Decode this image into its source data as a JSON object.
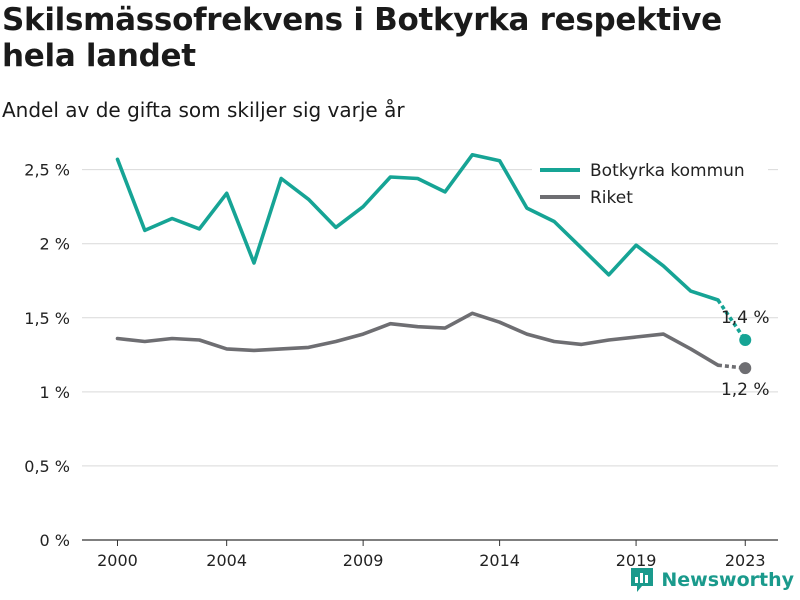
{
  "title": "Skilsmässofrekvens i Botkyrka respektive hela landet",
  "subtitle": "Andel av de gifta som skiljer sig varje år",
  "brand": "Newsworthy",
  "colors": {
    "botkyrka": "#16a495",
    "riket": "#6e6e72",
    "grid": "#d9d9d9",
    "axis": "#333333"
  },
  "chart_data": {
    "type": "line",
    "title": "Skilsmässofrekvens i Botkyrka respektive hela landet",
    "subtitle": "Andel av de gifta som skiljer sig varje år",
    "x": [
      2000,
      2001,
      2002,
      2003,
      2004,
      2005,
      2006,
      2007,
      2008,
      2009,
      2010,
      2011,
      2012,
      2013,
      2014,
      2015,
      2016,
      2017,
      2018,
      2019,
      2020,
      2021,
      2022,
      2023
    ],
    "xticks": [
      2000,
      2004,
      2009,
      2014,
      2019,
      2023
    ],
    "xlim": [
      1998.7,
      2024.2
    ],
    "ylim": [
      0,
      2.7
    ],
    "yticks": [
      0,
      0.5,
      1,
      1.5,
      2,
      2.5
    ],
    "ytick_labels": [
      "0 %",
      "0,5 %",
      "1 %",
      "1,5 %",
      "2 %",
      "2,5 %"
    ],
    "grid": true,
    "legend_position": "top-right",
    "series": [
      {
        "name": "Botkyrka kommun",
        "color": "#16a495",
        "values": [
          2.57,
          2.09,
          2.17,
          2.1,
          2.34,
          1.87,
          2.44,
          2.3,
          2.11,
          2.25,
          2.45,
          2.44,
          2.35,
          2.6,
          2.56,
          2.24,
          2.15,
          1.97,
          1.79,
          1.99,
          1.85,
          1.68,
          1.62,
          1.35
        ],
        "end_label": "1,4 %"
      },
      {
        "name": "Riket",
        "color": "#6e6e72",
        "values": [
          1.36,
          1.34,
          1.36,
          1.35,
          1.29,
          1.28,
          1.29,
          1.3,
          1.34,
          1.39,
          1.46,
          1.44,
          1.43,
          1.53,
          1.47,
          1.39,
          1.34,
          1.32,
          1.35,
          1.37,
          1.39,
          1.29,
          1.18,
          1.16
        ],
        "end_label": "1,2 %"
      }
    ]
  }
}
